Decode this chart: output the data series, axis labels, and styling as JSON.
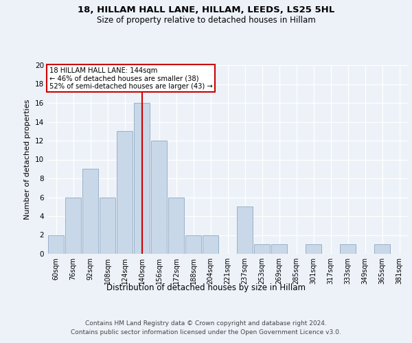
{
  "title1": "18, HILLAM HALL LANE, HILLAM, LEEDS, LS25 5HL",
  "title2": "Size of property relative to detached houses in Hillam",
  "xlabel": "Distribution of detached houses by size in Hillam",
  "ylabel": "Number of detached properties",
  "categories": [
    "60sqm",
    "76sqm",
    "92sqm",
    "108sqm",
    "124sqm",
    "140sqm",
    "156sqm",
    "172sqm",
    "188sqm",
    "204sqm",
    "221sqm",
    "237sqm",
    "253sqm",
    "269sqm",
    "285sqm",
    "301sqm",
    "317sqm",
    "333sqm",
    "349sqm",
    "365sqm",
    "381sqm"
  ],
  "values": [
    2,
    6,
    9,
    6,
    13,
    16,
    12,
    6,
    2,
    2,
    0,
    5,
    1,
    1,
    0,
    1,
    0,
    1,
    0,
    1,
    0
  ],
  "bar_color": "#c8d8e8",
  "bar_edge_color": "#9ab0c8",
  "annotation_line1": "18 HILLAM HALL LANE: 144sqm",
  "annotation_line2": "← 46% of detached houses are smaller (38)",
  "annotation_line3": "52% of semi-detached houses are larger (43) →",
  "annotation_box_color": "#cc0000",
  "vline_x": 5.0,
  "ylim": [
    0,
    20
  ],
  "yticks": [
    0,
    2,
    4,
    6,
    8,
    10,
    12,
    14,
    16,
    18,
    20
  ],
  "footer1": "Contains HM Land Registry data © Crown copyright and database right 2024.",
  "footer2": "Contains public sector information licensed under the Open Government Licence v3.0.",
  "background_color": "#edf2f9",
  "plot_bg_color": "#edf2f9"
}
